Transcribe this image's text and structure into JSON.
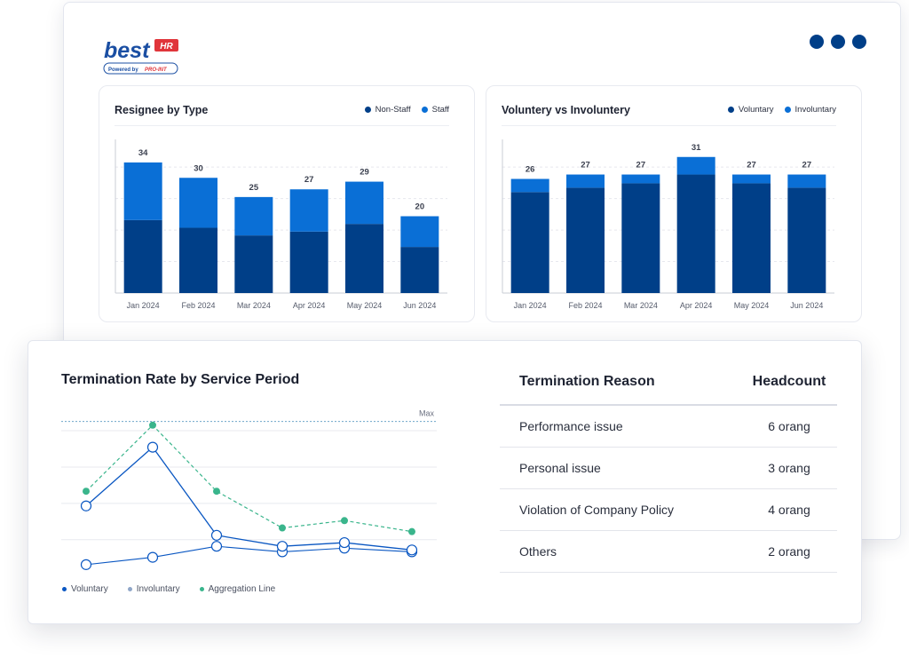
{
  "brand": {
    "name": "best",
    "badge": "HR",
    "powered_by": "Powered by",
    "partner": "PRO-INT",
    "color_primary": "#1b4fa3",
    "color_badge": "#e0353b"
  },
  "window_menu": {
    "icon": "three-dots-icon"
  },
  "colors": {
    "dark_blue": "#003f88",
    "bright_blue": "#0a6fd6",
    "teal": "#3ab58c",
    "line_blue": "#0a57c2"
  },
  "resignee_chart": {
    "title": "Resignee by Type",
    "legend": [
      "Non-Staff",
      "Staff"
    ]
  },
  "voluntary_chart": {
    "title": "Voluntery vs Involuntery",
    "legend": [
      "Voluntary",
      "Involuntary"
    ]
  },
  "termination_chart": {
    "title": "Termination Rate by Service Period",
    "max_label": "Max",
    "legend": [
      "Voluntary",
      "Involuntary",
      "Aggregation Line"
    ]
  },
  "termination_table": {
    "headers": {
      "reason": "Termination Reason",
      "headcount": "Headcount"
    },
    "rows": [
      {
        "reason": "Performance issue",
        "headcount": "6 orang"
      },
      {
        "reason": "Personal issue",
        "headcount": "3 orang"
      },
      {
        "reason": "Violation of Company Policy",
        "headcount": "4 orang"
      },
      {
        "reason": "Others",
        "headcount": "2 orang"
      }
    ]
  },
  "chart_data": [
    {
      "type": "bar",
      "stacked": true,
      "title": "Resignee by Type",
      "categories": [
        "Jan 2024",
        "Feb 2024",
        "Mar 2024",
        "Apr 2024",
        "May 2024",
        "Jun 2024"
      ],
      "series": [
        {
          "name": "Non-Staff",
          "values": [
            19,
            17,
            15,
            16,
            18,
            12
          ]
        },
        {
          "name": "Staff",
          "values": [
            15,
            13,
            10,
            11,
            11,
            8
          ]
        }
      ],
      "totals": [
        34,
        30,
        25,
        27,
        29,
        20
      ],
      "ylim": [
        0,
        40
      ],
      "grid": true,
      "legend": "top-right"
    },
    {
      "type": "bar",
      "stacked": true,
      "title": "Voluntery vs Involuntery",
      "categories": [
        "Jan 2024",
        "Feb 2024",
        "Mar 2024",
        "Apr 2024",
        "May 2024",
        "Jun 2024"
      ],
      "series": [
        {
          "name": "Voluntary",
          "values": [
            23,
            24,
            25,
            27,
            25,
            24
          ]
        },
        {
          "name": "Involuntary",
          "values": [
            3,
            3,
            2,
            4,
            2,
            3
          ]
        }
      ],
      "totals": [
        26,
        27,
        27,
        31,
        27,
        27
      ],
      "ylim": [
        0,
        35
      ],
      "grid": true,
      "legend": "top-right"
    },
    {
      "type": "line",
      "title": "Termination Rate by Service Period",
      "x": [
        1,
        2,
        3,
        4,
        5,
        6
      ],
      "series": [
        {
          "name": "Voluntary",
          "values": [
            17,
            33,
            9,
            6,
            7,
            5
          ]
        },
        {
          "name": "Involuntary",
          "values": [
            1,
            3,
            6,
            4.5,
            5.5,
            4.5
          ]
        },
        {
          "name": "Aggregation Line",
          "values": [
            21,
            39,
            21,
            11,
            13,
            10
          ]
        }
      ],
      "max_line": 40,
      "ylim": [
        0,
        45
      ],
      "grid": true,
      "legend": "bottom-left"
    }
  ]
}
